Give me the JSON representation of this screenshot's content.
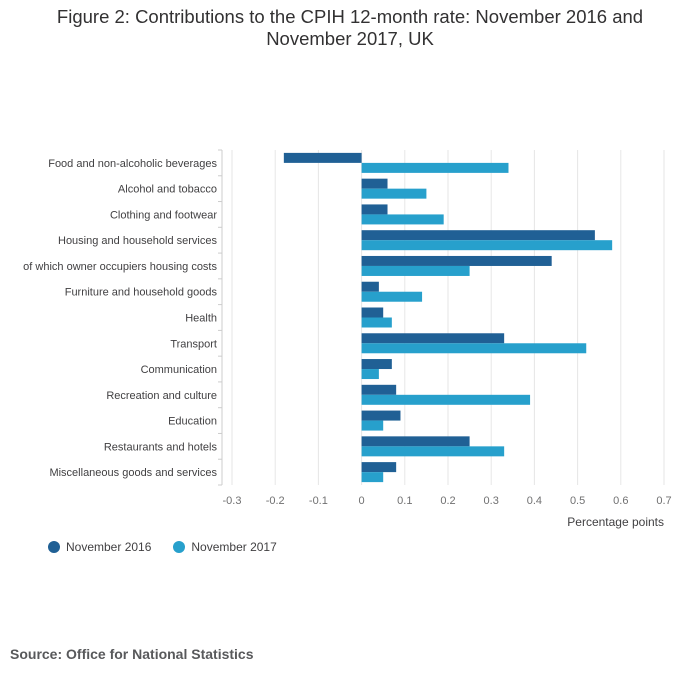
{
  "title": "Figure 2: Contributions to the CPIH 12-month rate: November 2016 and November 2017, UK",
  "source": "Source: Office for National Statistics",
  "chart_data": {
    "type": "bar",
    "orientation": "horizontal",
    "categories": [
      "Food and non-alcoholic beverages",
      "Alcohol and tobacco",
      "Clothing and footwear",
      "Housing and household services",
      "of which owner occupiers housing costs",
      "Furniture and household goods",
      "Health",
      "Transport",
      "Communication",
      "Recreation and culture",
      "Education",
      "Restaurants and hotels",
      "Miscellaneous goods and services"
    ],
    "series": [
      {
        "name": "November 2016",
        "color": "#206095",
        "values": [
          -0.18,
          0.06,
          0.06,
          0.54,
          0.44,
          0.04,
          0.05,
          0.33,
          0.07,
          0.08,
          0.09,
          0.25,
          0.08
        ]
      },
      {
        "name": "November 2017",
        "color": "#27a0cc",
        "values": [
          0.34,
          0.15,
          0.19,
          0.58,
          0.25,
          0.14,
          0.07,
          0.52,
          0.04,
          0.39,
          0.05,
          0.33,
          0.05
        ]
      }
    ],
    "xlabel": "Percentage points",
    "xlim": [
      -0.3,
      0.7
    ],
    "xticks": [
      "-0.3",
      "-0.2",
      "-0.1",
      "0",
      "0.1",
      "0.2",
      "0.3",
      "0.4",
      "0.5",
      "0.6",
      "0.7"
    ],
    "grid": true,
    "legend_position": "bottom-left"
  }
}
